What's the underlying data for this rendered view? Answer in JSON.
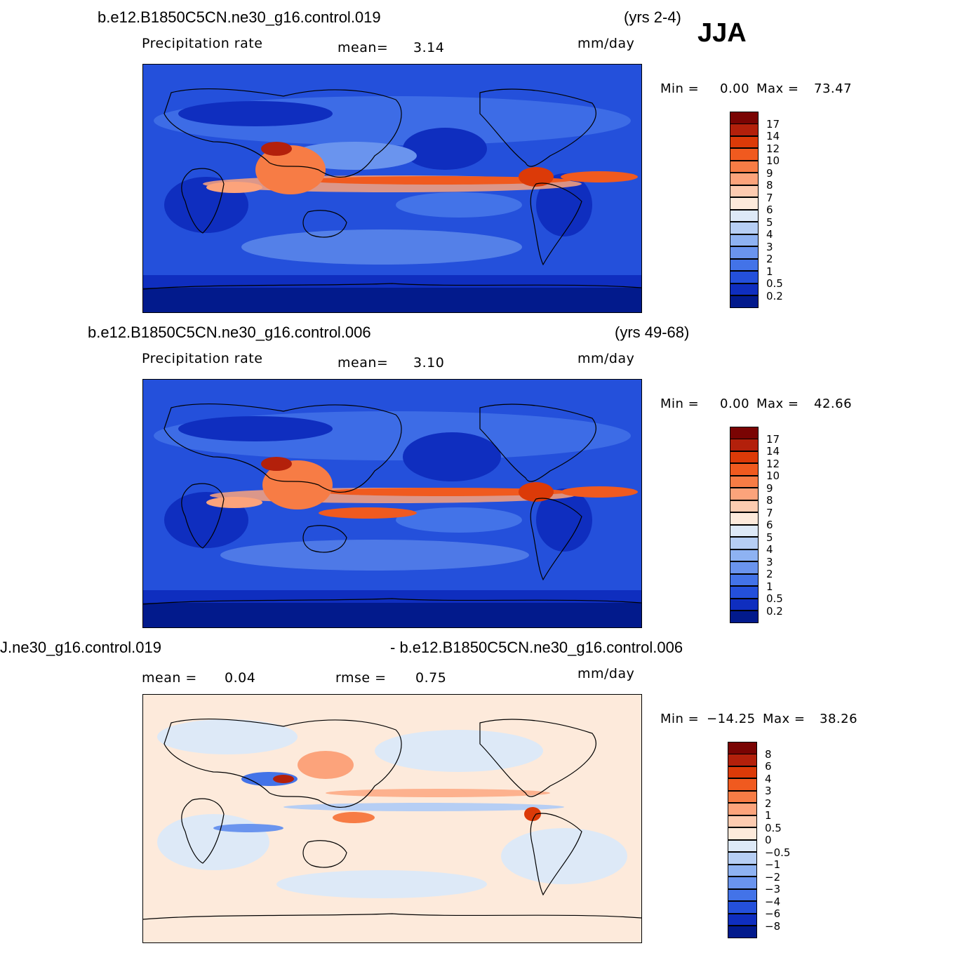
{
  "season": "JJA",
  "panels": [
    {
      "case": "b.e12.B1850C5CN.ne30_g16.control.019",
      "years": "(yrs 2-4)",
      "variable": "Precipitation  rate",
      "mean_text": "mean=",
      "mean_value": "3.14",
      "units": "mm/day",
      "min_label": "Min  =",
      "min_value": "0.00",
      "max_label": "Max  =",
      "max_value": "73.47"
    },
    {
      "case": "b.e12.B1850C5CN.ne30_g16.control.006",
      "years": "(yrs 49-68)",
      "variable": "Precipitation  rate",
      "mean_text": "mean=",
      "mean_value": "3.10",
      "units": "mm/day",
      "min_label": "Min  =",
      "min_value": "0.00",
      "max_label": "Max  =",
      "max_value": "42.66"
    },
    {
      "case_left": "J.ne30_g16.control.019",
      "case_right": "- b.e12.B1850C5CN.ne30_g16.control.006",
      "mean_text": "mean  =",
      "mean_value": "0.04",
      "rmse_text": "rmse  =",
      "rmse_value": "0.75",
      "units": "mm/day",
      "min_label": "Min  =",
      "min_value": "−14.25",
      "max_label": "Max  =",
      "max_value": "38.26"
    }
  ],
  "colorbars": {
    "absolute": {
      "labels": [
        "17",
        "14",
        "12",
        "10",
        "9",
        "8",
        "7",
        "6",
        "5",
        "4",
        "3",
        "2",
        "1",
        "0.5",
        "0.2"
      ],
      "colors": [
        "#7a0403",
        "#b3200b",
        "#dc3a08",
        "#f05a1f",
        "#f77c45",
        "#fca37b",
        "#fdcbb0",
        "#fdeadb",
        "#dde9f7",
        "#b6cef4",
        "#8eb2f2",
        "#6a94ee",
        "#4373e8",
        "#2450db",
        "#0f2ebf",
        "#021a8c"
      ]
    },
    "difference": {
      "labels": [
        "8",
        "6",
        "4",
        "3",
        "2",
        "1",
        "0.5",
        "0",
        "−0.5",
        "−1",
        "−2",
        "−3",
        "−4",
        "−6",
        "−8"
      ],
      "colors": [
        "#7a0403",
        "#b3200b",
        "#dc3a08",
        "#f05a1f",
        "#f77c45",
        "#fca37b",
        "#fdcbb0",
        "#fdeadb",
        "#dde9f7",
        "#b6cef4",
        "#8eb2f2",
        "#6a94ee",
        "#4373e8",
        "#2450db",
        "#0f2ebf",
        "#021a8c"
      ]
    }
  },
  "chart_data": [
    {
      "type": "heatmap",
      "title": "b.e12.B1850C5CN.ne30_g16.control.019",
      "subtitle": "Precipitation  rate",
      "units": "mm/day",
      "period": "(yrs 2-4)",
      "mean": 3.14,
      "min": 0.0,
      "max": 73.47,
      "colorbar_levels": [
        0.2,
        0.5,
        1,
        2,
        3,
        4,
        5,
        6,
        7,
        8,
        9,
        10,
        12,
        14,
        17
      ]
    },
    {
      "type": "heatmap",
      "title": "b.e12.B1850C5CN.ne30_g16.control.006",
      "subtitle": "Precipitation  rate",
      "units": "mm/day",
      "period": "(yrs 49-68)",
      "mean": 3.1,
      "min": 0.0,
      "max": 42.66,
      "colorbar_levels": [
        0.2,
        0.5,
        1,
        2,
        3,
        4,
        5,
        6,
        7,
        8,
        9,
        10,
        12,
        14,
        17
      ]
    },
    {
      "type": "heatmap",
      "title": "J.ne30_g16.control.019 - b.e12.B1850C5CN.ne30_g16.control.006",
      "units": "mm/day",
      "mean": 0.04,
      "rmse": 0.75,
      "min": -14.25,
      "max": 38.26,
      "colorbar_levels": [
        -8,
        -6,
        -4,
        -3,
        -2,
        -1,
        -0.5,
        0,
        0.5,
        1,
        2,
        3,
        4,
        6,
        8
      ]
    }
  ]
}
